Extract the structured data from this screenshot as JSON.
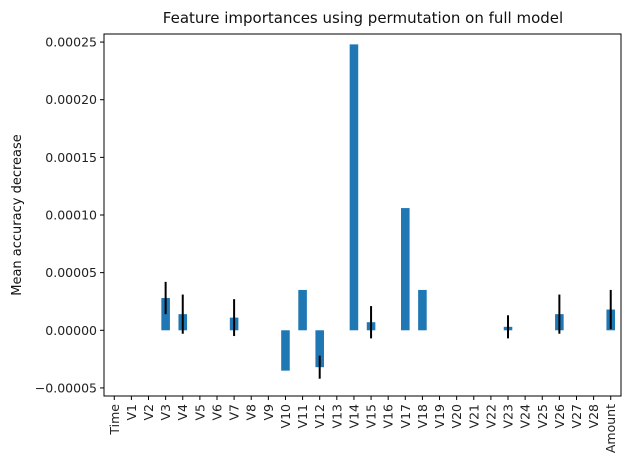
{
  "chart_data": {
    "type": "bar",
    "title": "Feature importances using permutation on full model",
    "xlabel": "",
    "ylabel": "Mean accuracy decrease",
    "ylim": [
      -5.7e-05,
      0.000257
    ],
    "yticks": [
      -5e-05,
      0.0,
      5e-05,
      0.0001,
      0.00015,
      0.0002,
      0.00025
    ],
    "ytick_labels": [
      "−0.00005",
      "0.00000",
      "0.00005",
      "0.00010",
      "0.00015",
      "0.00020",
      "0.00025"
    ],
    "grid": false,
    "bar_color": "#1f77b4",
    "error_bar_color": "#000000",
    "categories": [
      "Time",
      "V1",
      "V2",
      "V3",
      "V4",
      "V5",
      "V6",
      "V7",
      "V8",
      "V9",
      "V10",
      "V11",
      "V12",
      "V13",
      "V14",
      "V15",
      "V16",
      "V17",
      "V18",
      "V19",
      "V20",
      "V21",
      "V22",
      "V23",
      "V24",
      "V25",
      "V26",
      "V27",
      "V28",
      "Amount"
    ],
    "values": [
      0,
      0,
      0,
      2.8e-05,
      1.4e-05,
      0,
      0,
      1.1e-05,
      0,
      0,
      -3.5e-05,
      3.5e-05,
      -3.2e-05,
      0,
      0.000248,
      7e-06,
      0,
      0.000106,
      3.5e-05,
      0,
      0,
      0,
      0,
      3e-06,
      0,
      0,
      1.4e-05,
      0,
      0,
      1.8e-05
    ],
    "errors": [
      0,
      0,
      0,
      1.4e-05,
      1.7e-05,
      0,
      0,
      1.6e-05,
      0,
      0,
      0,
      0,
      1e-05,
      0,
      0,
      1.4e-05,
      0,
      0,
      0,
      0,
      0,
      0,
      0,
      1e-05,
      0,
      0,
      1.7e-05,
      0,
      0,
      1.7e-05
    ]
  }
}
